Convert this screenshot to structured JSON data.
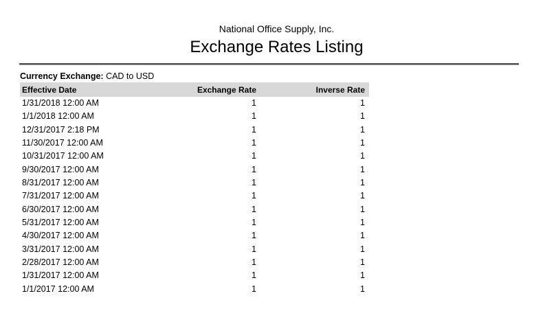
{
  "report": {
    "company_name": "National Office Supply, Inc.",
    "title": "Exchange Rates Listing",
    "currency_exchange_label": "Currency Exchange:",
    "currency_exchange_value": "CAD to USD"
  },
  "table": {
    "columns": {
      "effective_date": "Effective Date",
      "exchange_rate": "Exchange Rate",
      "inverse_rate": "Inverse Rate"
    },
    "rows": [
      {
        "effective_date": "1/31/2018 12:00 AM",
        "exchange_rate": "1",
        "inverse_rate": "1"
      },
      {
        "effective_date": "1/1/2018 12:00 AM",
        "exchange_rate": "1",
        "inverse_rate": "1"
      },
      {
        "effective_date": "12/31/2017 2:18 PM",
        "exchange_rate": "1",
        "inverse_rate": "1"
      },
      {
        "effective_date": "11/30/2017 12:00 AM",
        "exchange_rate": "1",
        "inverse_rate": "1"
      },
      {
        "effective_date": "10/31/2017 12:00 AM",
        "exchange_rate": "1",
        "inverse_rate": "1"
      },
      {
        "effective_date": "9/30/2017 12:00 AM",
        "exchange_rate": "1",
        "inverse_rate": "1"
      },
      {
        "effective_date": "8/31/2017 12:00 AM",
        "exchange_rate": "1",
        "inverse_rate": "1"
      },
      {
        "effective_date": "7/31/2017 12:00 AM",
        "exchange_rate": "1",
        "inverse_rate": "1"
      },
      {
        "effective_date": "6/30/2017 12:00 AM",
        "exchange_rate": "1",
        "inverse_rate": "1"
      },
      {
        "effective_date": "5/31/2017 12:00 AM",
        "exchange_rate": "1",
        "inverse_rate": "1"
      },
      {
        "effective_date": "4/30/2017 12:00 AM",
        "exchange_rate": "1",
        "inverse_rate": "1"
      },
      {
        "effective_date": "3/31/2017 12:00 AM",
        "exchange_rate": "1",
        "inverse_rate": "1"
      },
      {
        "effective_date": "2/28/2017 12:00 AM",
        "exchange_rate": "1",
        "inverse_rate": "1"
      },
      {
        "effective_date": "1/31/2017 12:00 AM",
        "exchange_rate": "1",
        "inverse_rate": "1"
      },
      {
        "effective_date": "1/1/2017 12:00 AM",
        "exchange_rate": "1",
        "inverse_rate": "1"
      }
    ]
  },
  "colors": {
    "header_bg": "#d8d8d8",
    "separator_dark": "#4c4c4c",
    "separator_light": "#a9a9a9",
    "text": "#000000",
    "page_bg": "#ffffff"
  }
}
